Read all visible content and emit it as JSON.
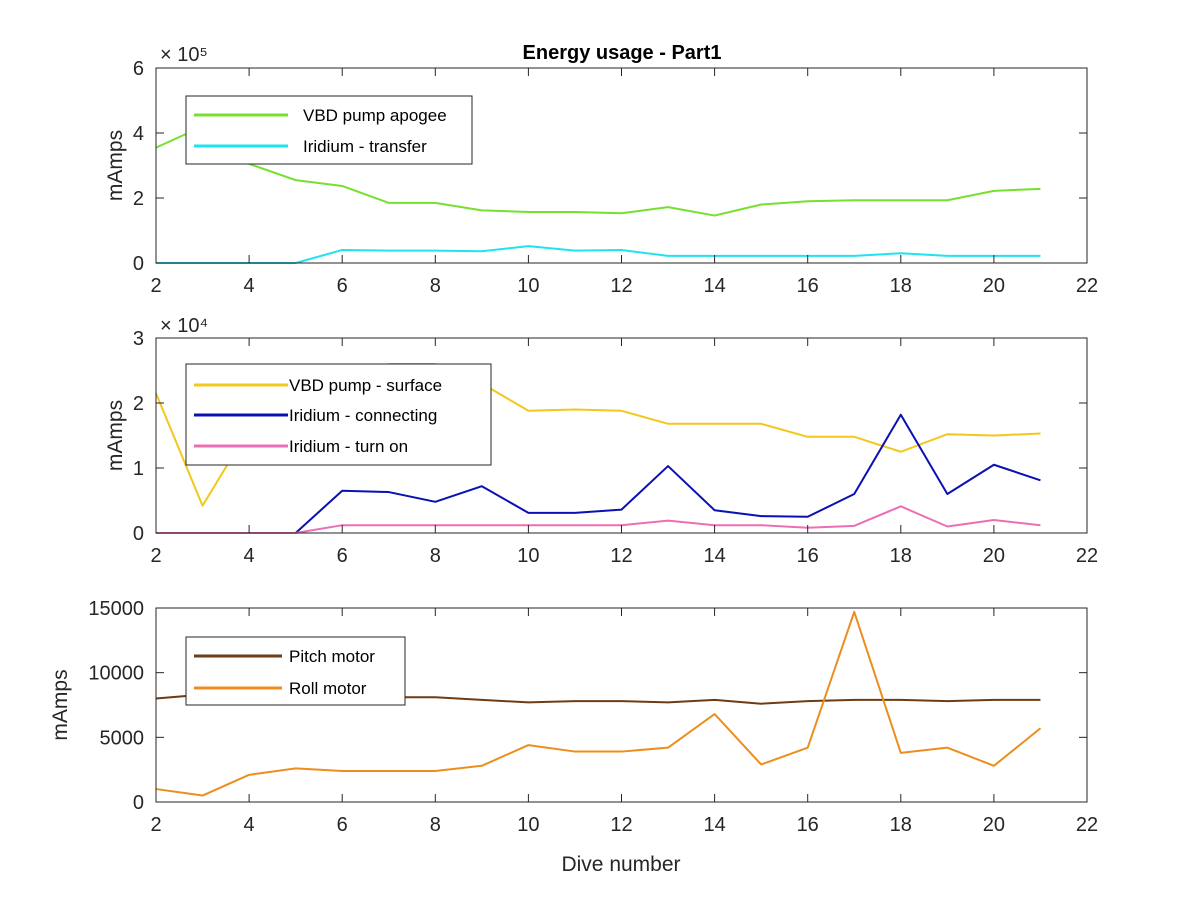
{
  "figure_title": "Energy usage - Part1",
  "chart_data": [
    {
      "type": "line",
      "title": "Energy usage - Part1",
      "xlabel": "",
      "ylabel": "mAmps",
      "exponent_label": "× 10⁵",
      "xlim": [
        2,
        22
      ],
      "ylim": [
        0,
        600000
      ],
      "xticks": [
        2,
        4,
        6,
        8,
        10,
        12,
        14,
        16,
        18,
        20,
        22
      ],
      "xtick_labels": [
        "2",
        "4",
        "6",
        "8",
        "10",
        "12",
        "14",
        "16",
        "18",
        "20",
        "22"
      ],
      "yticks": [
        0,
        200000,
        400000,
        600000
      ],
      "ytick_labels": [
        "0",
        "2",
        "4",
        "6"
      ],
      "grid": false,
      "legend_position": "top-left",
      "x": [
        2,
        3,
        4,
        5,
        6,
        7,
        8,
        9,
        10,
        11,
        12,
        13,
        14,
        15,
        16,
        17,
        18,
        19,
        20,
        21
      ],
      "series": [
        {
          "name": "VBD pump apogee",
          "color": "#77e02e",
          "values": [
            355000,
            420000,
            305000,
            255000,
            237000,
            185000,
            185000,
            162000,
            157000,
            157000,
            153000,
            172000,
            146000,
            180000,
            190000,
            193000,
            193000,
            193000,
            222000,
            228000
          ]
        },
        {
          "name": "Iridium - transfer",
          "color": "#1fe3f0",
          "values": [
            0,
            0,
            0,
            0,
            40000,
            38000,
            38000,
            36000,
            52000,
            38000,
            40000,
            22000,
            22000,
            22000,
            22000,
            22000,
            30000,
            22000,
            22000,
            22000
          ]
        }
      ]
    },
    {
      "type": "line",
      "title": "",
      "xlabel": "",
      "ylabel": "mAmps",
      "exponent_label": "× 10⁴",
      "xlim": [
        2,
        22
      ],
      "ylim": [
        0,
        30000
      ],
      "xticks": [
        2,
        4,
        6,
        8,
        10,
        12,
        14,
        16,
        18,
        20,
        22
      ],
      "xtick_labels": [
        "2",
        "4",
        "6",
        "8",
        "10",
        "12",
        "14",
        "16",
        "18",
        "20",
        "22"
      ],
      "yticks": [
        0,
        10000,
        20000,
        30000
      ],
      "ytick_labels": [
        "0",
        "1",
        "2",
        "3"
      ],
      "grid": false,
      "legend_position": "top-left",
      "x": [
        2,
        3,
        4,
        5,
        6,
        7,
        8,
        9,
        10,
        11,
        12,
        13,
        14,
        15,
        16,
        17,
        18,
        19,
        20,
        21
      ],
      "series": [
        {
          "name": "VBD pump - surface",
          "color": "#f2c81c",
          "values": [
            21500,
            4200,
            16000,
            20000,
            23000,
            26000,
            26000,
            23000,
            18800,
            19000,
            18800,
            16800,
            16800,
            16800,
            14800,
            14800,
            12500,
            15200,
            15000,
            15300
          ]
        },
        {
          "name": "Iridium - connecting",
          "color": "#0a10b4",
          "values": [
            0,
            0,
            0,
            0,
            6500,
            6300,
            4800,
            7200,
            3100,
            3100,
            3600,
            10300,
            3500,
            2600,
            2500,
            6000,
            18200,
            6000,
            10500,
            8100
          ]
        },
        {
          "name": "Iridium - turn on",
          "color": "#eb6fb4",
          "values": [
            0,
            0,
            0,
            0,
            1200,
            1200,
            1200,
            1200,
            1200,
            1200,
            1200,
            1900,
            1200,
            1200,
            800,
            1100,
            4100,
            1000,
            2000,
            1200
          ]
        }
      ]
    },
    {
      "type": "line",
      "title": "",
      "xlabel": "Dive number",
      "ylabel": "mAmps",
      "exponent_label": "",
      "xlim": [
        2,
        22
      ],
      "ylim": [
        0,
        15000
      ],
      "xticks": [
        2,
        4,
        6,
        8,
        10,
        12,
        14,
        16,
        18,
        20,
        22
      ],
      "xtick_labels": [
        "2",
        "4",
        "6",
        "8",
        "10",
        "12",
        "14",
        "16",
        "18",
        "20",
        "22"
      ],
      "yticks": [
        0,
        5000,
        10000,
        15000
      ],
      "ytick_labels": [
        "0",
        "5000",
        "10000",
        "15000"
      ],
      "grid": false,
      "legend_position": "top-left",
      "x": [
        2,
        3,
        4,
        5,
        6,
        7,
        8,
        9,
        10,
        11,
        12,
        13,
        14,
        15,
        16,
        17,
        18,
        19,
        20,
        21
      ],
      "series": [
        {
          "name": "Pitch motor",
          "color": "#6e3c14",
          "values": [
            8000,
            8300,
            8200,
            8100,
            8100,
            8100,
            8100,
            7900,
            7700,
            7800,
            7800,
            7700,
            7900,
            7600,
            7800,
            7900,
            7900,
            7800,
            7900,
            7900
          ]
        },
        {
          "name": "Roll motor",
          "color": "#ec8e1e",
          "values": [
            1000,
            500,
            2100,
            2600,
            2400,
            2400,
            2400,
            2800,
            4400,
            3900,
            3900,
            4200,
            6800,
            2900,
            4200,
            14700,
            3800,
            4200,
            2800,
            5700
          ]
        }
      ]
    }
  ]
}
